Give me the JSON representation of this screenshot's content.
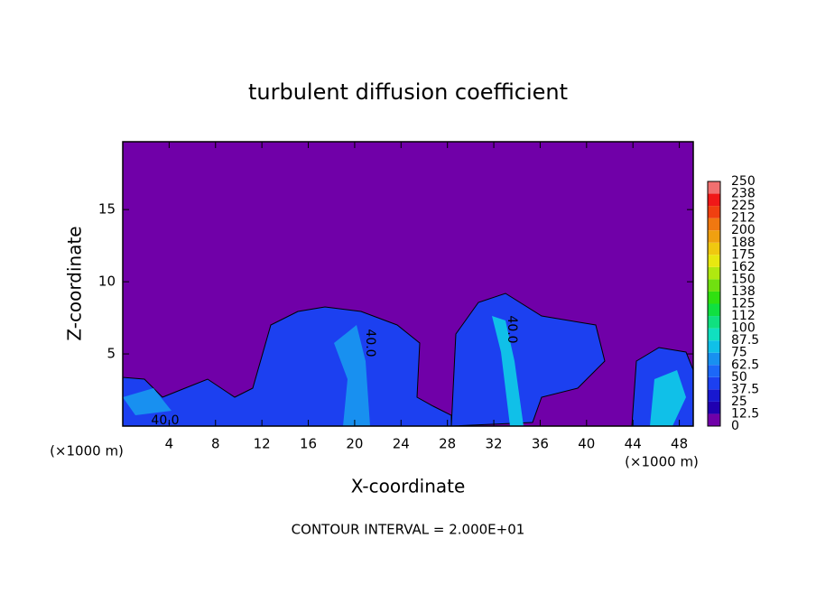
{
  "chart_data": {
    "type": "contour",
    "title": "turbulent diffusion coefficient",
    "xlabel": "X-coordinate",
    "ylabel": "Z-coordinate",
    "x_unit": "(×1000 m)",
    "y_unit": "(×1000 m)",
    "xlim": [
      0,
      49.2
    ],
    "ylim": [
      0,
      19.7
    ],
    "xticks": [
      4,
      8,
      12,
      16,
      20,
      24,
      28,
      32,
      36,
      40,
      44,
      48
    ],
    "yticks": [
      5,
      10,
      15
    ],
    "levels": [
      0,
      12.5,
      25,
      37.5,
      50,
      62.5,
      75,
      87.5,
      100,
      {
        "value": 112.5,
        "label": "112"
      },
      125,
      {
        "value": 137.5,
        "label": "138"
      },
      150,
      {
        "value": 162.5,
        "label": "162"
      },
      175,
      {
        "value": 187.5,
        "label": "188"
      },
      200,
      {
        "value": 212.5,
        "label": "212"
      },
      225,
      {
        "value": 237.5,
        "label": "238"
      },
      250
    ],
    "colors": [
      "#7000a8",
      "#2000b0",
      "#1818d0",
      "#1c40f0",
      "#1c68f8",
      "#1890f0",
      "#10c0e8",
      "#10e0c0",
      "#10e080",
      "#10e040",
      "#30e010",
      "#70e010",
      "#b0e810",
      "#e8e810",
      "#f0c810",
      "#f0a010",
      "#f07810",
      "#f04010",
      "#f01818",
      "#f07070"
    ],
    "contour_labels": [
      "40.0",
      "40.0",
      "40.0"
    ],
    "footer": "CONTOUR INTERVAL = 2.000E+01"
  }
}
